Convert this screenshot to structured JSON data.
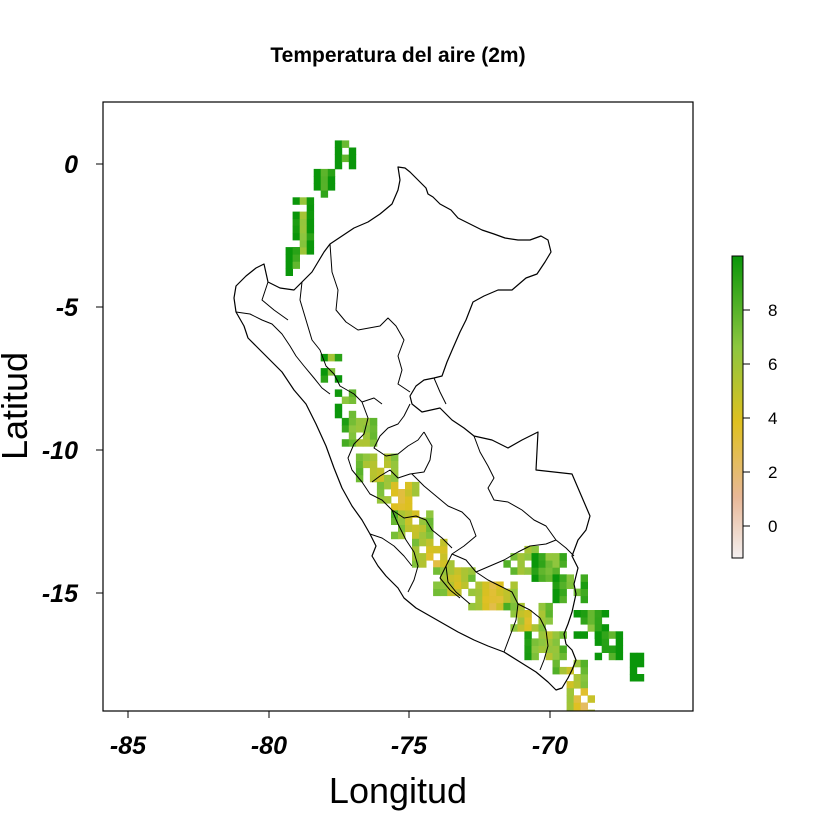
{
  "title": "Temperatura del aire (2m)",
  "xlabel": "Longitud",
  "ylabel": "Latitud",
  "x_ticks": [
    "-85",
    "-80",
    "-75",
    "-70"
  ],
  "y_ticks": [
    "0",
    "-5",
    "-10",
    "-15"
  ],
  "colorbar_ticks": [
    "0",
    "2",
    "4",
    "6",
    "8"
  ],
  "colors": {
    "high": "#0b9a0b",
    "mid_high": "#4fb02a",
    "mid": "#a7c92a",
    "yellowish": "#d8c81e",
    "low": "#e3b06a",
    "lowest": "#f2e6e6"
  },
  "chart_data": {
    "type": "heatmap",
    "title": "Temperatura del aire (2m)",
    "xlabel": "Longitud",
    "ylabel": "Latitud",
    "xlim": [
      -86,
      -65
    ],
    "ylim": [
      -19.3,
      2.1
    ],
    "x_ticks": [
      -85,
      -80,
      -75,
      -70
    ],
    "y_ticks": [
      0,
      -5,
      -10,
      -15
    ],
    "value_range": [
      -1,
      10
    ],
    "colorbar_ticks": [
      0,
      2,
      4,
      6,
      8
    ],
    "colormap": [
      "#f4f0f0",
      "#e8b898",
      "#dfc020",
      "#8cc63f",
      "#0a960a"
    ],
    "cell_size_deg": 0.25,
    "band_segments": [
      {
        "lon": -77.5,
        "lat": 0.5,
        "value": 8,
        "width": 0.5
      },
      {
        "lon": -78.3,
        "lat": -0.5,
        "value": 8,
        "width": 0.6
      },
      {
        "lon": -78.9,
        "lat": -1.5,
        "value": 7,
        "width": 0.5
      },
      {
        "lon": -79.0,
        "lat": -2.5,
        "value": 7,
        "width": 0.5
      },
      {
        "lon": -79.3,
        "lat": -3.2,
        "value": 8,
        "width": 0.4
      },
      {
        "lon": -78.0,
        "lat": -7.0,
        "value": 7,
        "width": 0.5
      },
      {
        "lon": -77.5,
        "lat": -8.2,
        "value": 7,
        "width": 0.7
      },
      {
        "lon": -76.8,
        "lat": -9.3,
        "value": 6,
        "width": 1.2
      },
      {
        "lon": -76.2,
        "lat": -10.4,
        "value": 5,
        "width": 1.4
      },
      {
        "lon": -75.6,
        "lat": -11.4,
        "value": 4,
        "width": 1.4
      },
      {
        "lon": -75.0,
        "lat": -12.5,
        "value": 5,
        "width": 1.4
      },
      {
        "lon": -74.4,
        "lat": -13.6,
        "value": 4,
        "width": 1.4
      },
      {
        "lon": -73.5,
        "lat": -14.5,
        "value": 5,
        "width": 1.4
      },
      {
        "lon": -72.2,
        "lat": -15.0,
        "value": 4,
        "width": 1.6
      },
      {
        "lon": -71.0,
        "lat": -15.8,
        "value": 5,
        "width": 1.5
      },
      {
        "lon": -70.2,
        "lat": -16.8,
        "value": 6,
        "width": 1.4
      },
      {
        "lon": -69.5,
        "lat": -17.8,
        "value": 5,
        "width": 1.0
      },
      {
        "lon": -69.2,
        "lat": -18.8,
        "value": 3,
        "width": 0.8
      },
      {
        "lon": -71.2,
        "lat": -13.7,
        "value": 6,
        "width": 1.2
      },
      {
        "lon": -70.2,
        "lat": -13.9,
        "value": 7,
        "width": 1.2
      },
      {
        "lon": -69.4,
        "lat": -14.8,
        "value": 7,
        "width": 1.2
      },
      {
        "lon": -68.7,
        "lat": -15.9,
        "value": 8,
        "width": 1.0
      },
      {
        "lon": -68.0,
        "lat": -16.7,
        "value": 8,
        "width": 0.8
      },
      {
        "lon": -67.2,
        "lat": -17.4,
        "value": 9,
        "width": 0.3
      }
    ]
  }
}
